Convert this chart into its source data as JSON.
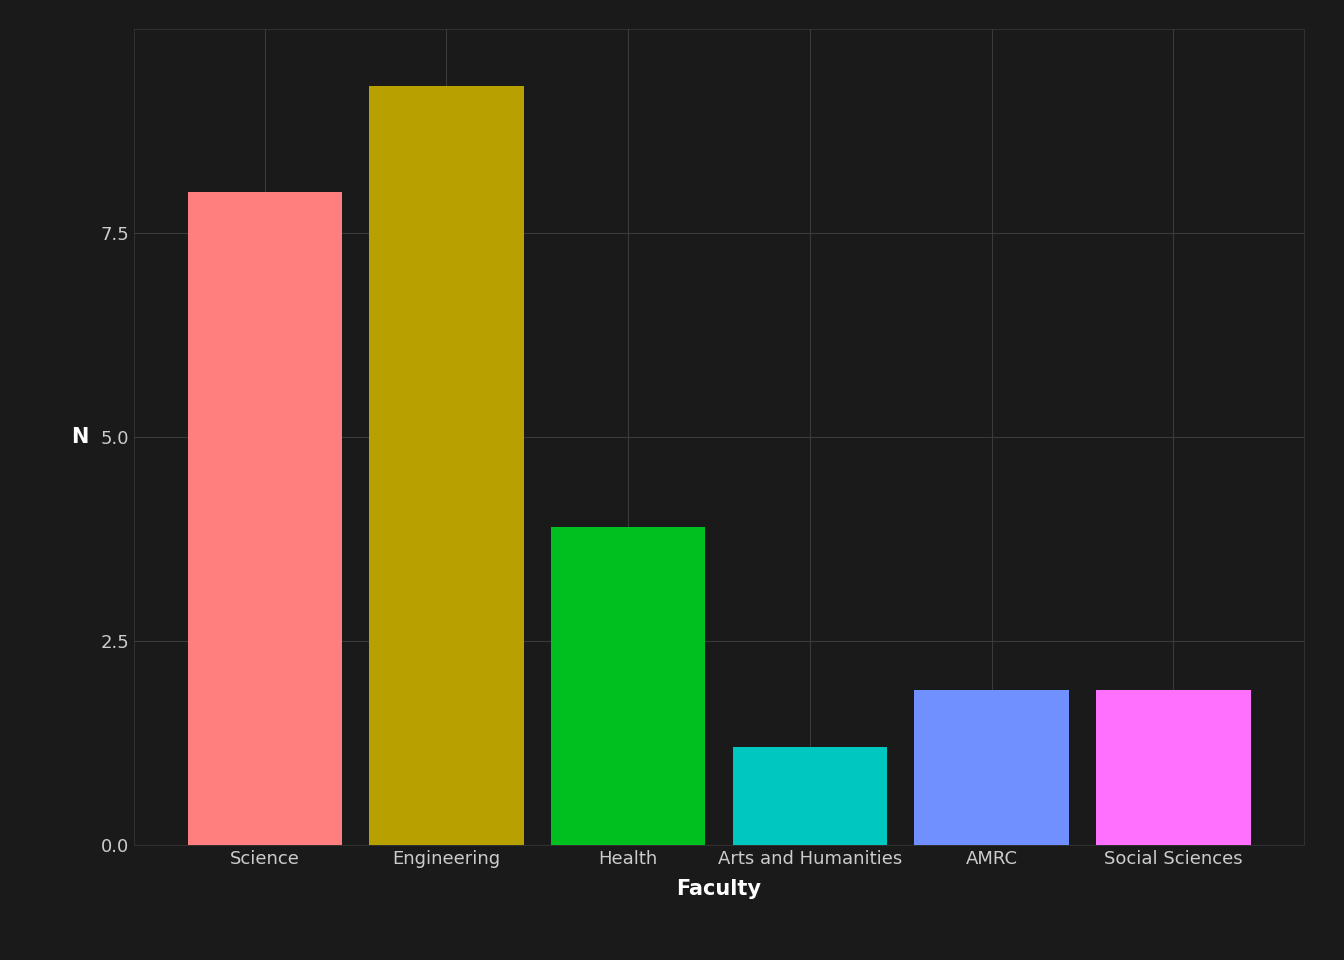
{
  "categories": [
    "Science",
    "Engineering",
    "Health",
    "Arts and Humanities",
    "AMRC",
    "Social Sciences"
  ],
  "values": [
    8,
    9.3,
    3.9,
    1.2,
    1.9,
    1.9
  ],
  "bar_colors": [
    "#FF7F7F",
    "#B8A000",
    "#00C020",
    "#00C8C0",
    "#7090FF",
    "#FF70FF"
  ],
  "background_color": "#1A1A1A",
  "panel_color": "#1A1A1A",
  "grid_color": "#3A3A3A",
  "text_color": "#CCCCCC",
  "xlabel": "Faculty",
  "ylabel": "N",
  "ylim": [
    0,
    10
  ],
  "yticks": [
    0.0,
    2.5,
    5.0,
    7.5
  ],
  "bar_width": 0.85,
  "axis_label_fontsize": 15,
  "tick_fontsize": 13
}
